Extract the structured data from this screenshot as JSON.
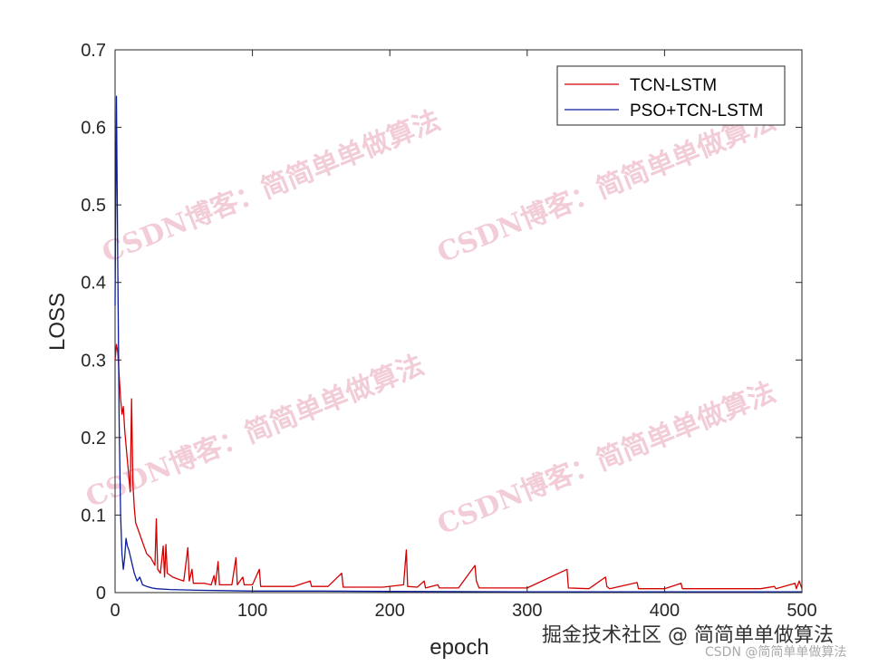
{
  "chart_data": {
    "type": "line",
    "title": "",
    "xlabel": "epoch",
    "ylabel": "LOSS",
    "xlim": [
      0,
      500
    ],
    "ylim": [
      0,
      0.7
    ],
    "xticks": [
      "0",
      "100",
      "200",
      "300",
      "400",
      "500"
    ],
    "yticks": [
      "0",
      "0.1",
      "0.2",
      "0.3",
      "0.4",
      "0.5",
      "0.6",
      "0.7"
    ],
    "grid": false,
    "legend_position": "top-right",
    "series": [
      {
        "name": "TCN-LSTM",
        "color": "#d40000",
        "points": [
          [
            0,
            0.3
          ],
          [
            1,
            0.32
          ],
          [
            2,
            0.31
          ],
          [
            3,
            0.28
          ],
          [
            4,
            0.25
          ],
          [
            5,
            0.23
          ],
          [
            6,
            0.24
          ],
          [
            7,
            0.21
          ],
          [
            8,
            0.19
          ],
          [
            9,
            0.17
          ],
          [
            10,
            0.15
          ],
          [
            11,
            0.13
          ],
          [
            12,
            0.25
          ],
          [
            13,
            0.14
          ],
          [
            14,
            0.11
          ],
          [
            15,
            0.09
          ],
          [
            17,
            0.08
          ],
          [
            20,
            0.065
          ],
          [
            23,
            0.05
          ],
          [
            26,
            0.045
          ],
          [
            29,
            0.035
          ],
          [
            30,
            0.095
          ],
          [
            31,
            0.03
          ],
          [
            33,
            0.025
          ],
          [
            35,
            0.06
          ],
          [
            36,
            0.02
          ],
          [
            37,
            0.062
          ],
          [
            38,
            0.025
          ],
          [
            42,
            0.02
          ],
          [
            45,
            0.018
          ],
          [
            50,
            0.015
          ],
          [
            53,
            0.058
          ],
          [
            54,
            0.015
          ],
          [
            56,
            0.03
          ],
          [
            57,
            0.012
          ],
          [
            60,
            0.012
          ],
          [
            65,
            0.012
          ],
          [
            70,
            0.01
          ],
          [
            72,
            0.022
          ],
          [
            73,
            0.01
          ],
          [
            75,
            0.04
          ],
          [
            76,
            0.01
          ],
          [
            80,
            0.01
          ],
          [
            85,
            0.01
          ],
          [
            88,
            0.045
          ],
          [
            89,
            0.01
          ],
          [
            93,
            0.02
          ],
          [
            94,
            0.01
          ],
          [
            100,
            0.01
          ],
          [
            105,
            0.03
          ],
          [
            106,
            0.008
          ],
          [
            115,
            0.008
          ],
          [
            130,
            0.008
          ],
          [
            142,
            0.015
          ],
          [
            143,
            0.008
          ],
          [
            155,
            0.008
          ],
          [
            165,
            0.025
          ],
          [
            166,
            0.007
          ],
          [
            180,
            0.007
          ],
          [
            195,
            0.007
          ],
          [
            210,
            0.01
          ],
          [
            212,
            0.055
          ],
          [
            213,
            0.008
          ],
          [
            220,
            0.007
          ],
          [
            225,
            0.015
          ],
          [
            226,
            0.006
          ],
          [
            235,
            0.01
          ],
          [
            236,
            0.006
          ],
          [
            250,
            0.006
          ],
          [
            262,
            0.035
          ],
          [
            263,
            0.015
          ],
          [
            265,
            0.006
          ],
          [
            280,
            0.006
          ],
          [
            300,
            0.006
          ],
          [
            329,
            0.03
          ],
          [
            330,
            0.006
          ],
          [
            345,
            0.005
          ],
          [
            357,
            0.02
          ],
          [
            358,
            0.008
          ],
          [
            360,
            0.005
          ],
          [
            380,
            0.013
          ],
          [
            381,
            0.005
          ],
          [
            400,
            0.005
          ],
          [
            412,
            0.012
          ],
          [
            413,
            0.005
          ],
          [
            430,
            0.005
          ],
          [
            450,
            0.005
          ],
          [
            470,
            0.005
          ],
          [
            480,
            0.008
          ],
          [
            481,
            0.005
          ],
          [
            495,
            0.012
          ],
          [
            496,
            0.005
          ],
          [
            498,
            0.015
          ],
          [
            500,
            0.005
          ]
        ]
      },
      {
        "name": "PSO+TCN-LSTM",
        "color": "#0a1e9c",
        "points": [
          [
            0,
            0.37
          ],
          [
            1,
            0.64
          ],
          [
            2,
            0.42
          ],
          [
            3,
            0.22
          ],
          [
            4,
            0.1
          ],
          [
            5,
            0.05
          ],
          [
            6,
            0.03
          ],
          [
            7,
            0.045
          ],
          [
            8,
            0.07
          ],
          [
            9,
            0.06
          ],
          [
            10,
            0.055
          ],
          [
            12,
            0.04
          ],
          [
            14,
            0.025
          ],
          [
            16,
            0.015
          ],
          [
            18,
            0.02
          ],
          [
            20,
            0.01
          ],
          [
            23,
            0.008
          ],
          [
            27,
            0.006
          ],
          [
            30,
            0.005
          ],
          [
            40,
            0.004
          ],
          [
            60,
            0.003
          ],
          [
            100,
            0.002
          ],
          [
            150,
            0.002
          ],
          [
            200,
            0.0015
          ],
          [
            300,
            0.001
          ],
          [
            400,
            0.001
          ],
          [
            500,
            0.001
          ]
        ]
      }
    ]
  },
  "watermarks": [
    "CSDN博客：简简单单做算法",
    "CSDN博客：简简单单做算法",
    "CSDN博客：简简单单做算法",
    "CSDN博客：简简单单做算法"
  ],
  "footer": {
    "main": "掘金技术社区 @ 简简单单做算法",
    "sub": "CSDN @简简单单做算法"
  }
}
